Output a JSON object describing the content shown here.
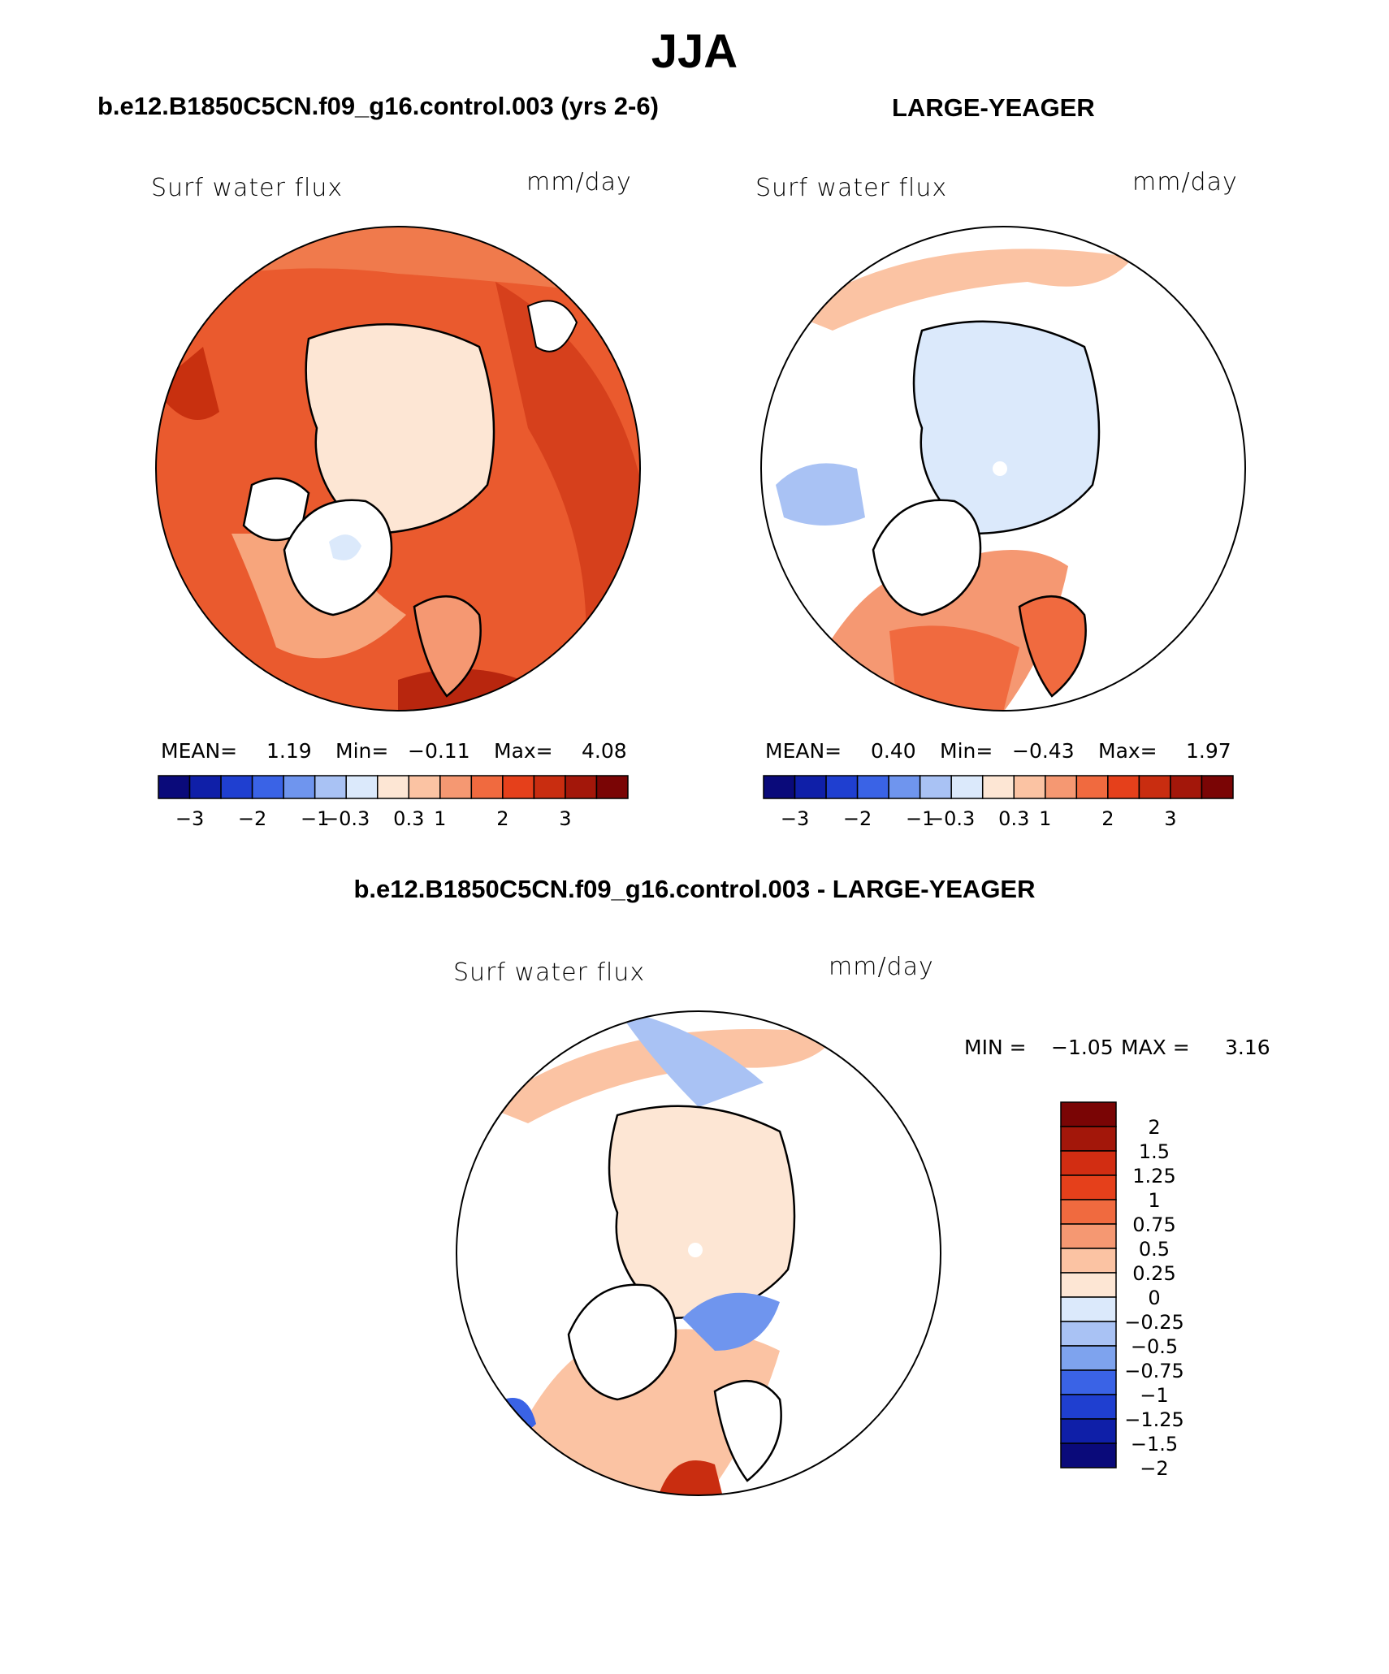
{
  "title": "JJA",
  "panels": [
    {
      "case": "b.e12.B1850C5CN.f09_g16.control.003 (yrs 2-6)",
      "variable": "Surf water flux",
      "units": "mm/day",
      "stats": {
        "mean_label": "MEAN=",
        "mean": "1.19",
        "min_label": "Min=",
        "min": "−0.11",
        "max_label": "Max=",
        "max": "4.08"
      },
      "colorbar_labels": [
        "−3",
        "−2",
        "−1",
        "−0.3",
        "0.3",
        "1",
        "2",
        "3"
      ]
    },
    {
      "case": "LARGE-YEAGER",
      "variable": "Surf water flux",
      "units": "mm/day",
      "stats": {
        "mean_label": "MEAN=",
        "mean": "0.40",
        "min_label": "Min=",
        "min": "−0.43",
        "max_label": "Max=",
        "max": "1.97"
      },
      "colorbar_labels": [
        "−3",
        "−2",
        "−1",
        "−0.3",
        "0.3",
        "1",
        "2",
        "3"
      ]
    }
  ],
  "diff": {
    "title": "b.e12.B1850C5CN.f09_g16.control.003 - LARGE-YEAGER",
    "variable": "Surf water flux",
    "units": "mm/day",
    "stats": {
      "min_label": "MIN =",
      "min": "−1.05",
      "max_label": "MAX =",
      "max": "3.16"
    },
    "colorbar_labels": [
      "2",
      "1.5",
      "1.25",
      "1",
      "0.75",
      "0.5",
      "0.25",
      "0",
      "−0.25",
      "−0.5",
      "−0.75",
      "−1",
      "−1.25",
      "−1.5",
      "−2"
    ]
  },
  "colors": {
    "horizontal_colorbar": [
      "#0a0a7a",
      "#0f1fa8",
      "#1f3fd0",
      "#3a63e6",
      "#6f95ee",
      "#a9c2f4",
      "#dbe9fb",
      "#fde6d4",
      "#fbc3a3",
      "#f59872",
      "#f06a3f",
      "#e5401b",
      "#c92d10",
      "#a3170a",
      "#7a0505"
    ],
    "vertical_colorbar": [
      "#7a0505",
      "#a3170a",
      "#d22d12",
      "#e5401b",
      "#f06a3f",
      "#f59872",
      "#fbc3a3",
      "#fde6d4",
      "#dbe9fb",
      "#a9c2f4",
      "#7ea3ee",
      "#3a63e6",
      "#1f3fd0",
      "#0f1fa8",
      "#0a0a7a"
    ]
  },
  "chart_data": [
    {
      "type": "heatmap",
      "projection": "north-polar stereographic",
      "title": "b.e12.B1850C5CN.f09_g16.control.003 (yrs 2-6)",
      "variable": "Surf water flux",
      "units": "mm/day",
      "mean": 1.19,
      "min": -0.11,
      "max": 4.08,
      "contour_levels": [
        -3,
        -2.5,
        -2,
        -1.5,
        -1,
        -0.6,
        -0.3,
        0,
        0.3,
        0.6,
        1,
        1.5,
        2,
        2.5,
        3
      ],
      "colorbar_tick_labels": [
        -3,
        -2,
        -1,
        -0.3,
        0.3,
        1,
        2,
        3
      ]
    },
    {
      "type": "heatmap",
      "projection": "north-polar stereographic",
      "title": "LARGE-YEAGER",
      "variable": "Surf water flux",
      "units": "mm/day",
      "mean": 0.4,
      "min": -0.43,
      "max": 1.97,
      "contour_levels": [
        -3,
        -2.5,
        -2,
        -1.5,
        -1,
        -0.6,
        -0.3,
        0,
        0.3,
        0.6,
        1,
        1.5,
        2,
        2.5,
        3
      ],
      "colorbar_tick_labels": [
        -3,
        -2,
        -1,
        -0.3,
        0.3,
        1,
        2,
        3
      ]
    },
    {
      "type": "heatmap",
      "projection": "north-polar stereographic",
      "title": "b.e12.B1850C5CN.f09_g16.control.003 - LARGE-YEAGER",
      "variable": "Surf water flux",
      "units": "mm/day",
      "min": -1.05,
      "max": 3.16,
      "contour_levels": [
        2,
        1.5,
        1.25,
        1,
        0.75,
        0.5,
        0.25,
        0,
        -0.25,
        -0.5,
        -0.75,
        -1,
        -1.25,
        -1.5,
        -2
      ]
    }
  ]
}
